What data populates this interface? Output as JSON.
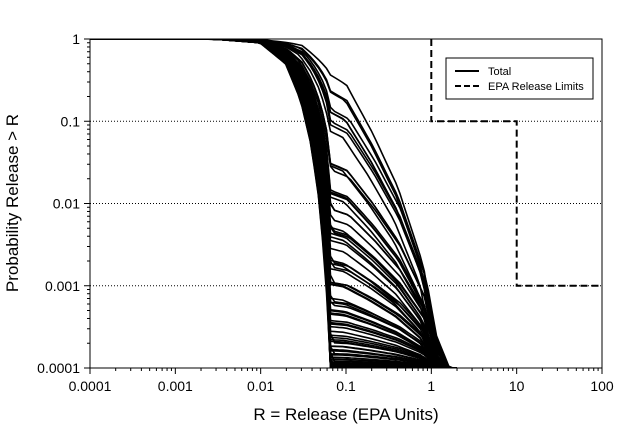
{
  "chart_data": {
    "type": "line",
    "xscale": "log",
    "yscale": "log",
    "xlim": [
      0.0001,
      100
    ],
    "ylim": [
      0.0001,
      1
    ],
    "xlabel": "R = Release (EPA Units)",
    "ylabel": "Probability Release > R",
    "x_ticks": [
      "0.0001",
      "0.001",
      "0.01",
      "0.1",
      "1",
      "10",
      "100"
    ],
    "y_ticks": [
      "1",
      "0.1",
      "0.01",
      "0.001",
      "0.0001"
    ],
    "grid": "dotted horizontal at y = 0.1, 0.01, 0.001",
    "legend_position": "top-right",
    "series": [
      {
        "name": "Total",
        "style": "solid",
        "note_count": "ensemble of many realizations (CCDFs)",
        "median_curve": [
          [
            0.0001,
            1
          ],
          [
            0.003,
            0.995
          ],
          [
            0.01,
            0.9
          ],
          [
            0.02,
            0.5
          ],
          [
            0.03,
            0.18
          ],
          [
            0.04,
            0.05
          ],
          [
            0.05,
            0.01
          ],
          [
            0.06,
            0.001
          ],
          [
            0.065,
            0.0001
          ]
        ],
        "upper_curve": [
          [
            0.0001,
            1
          ],
          [
            0.01,
            0.99
          ],
          [
            0.03,
            0.9
          ],
          [
            0.1,
            0.4
          ],
          [
            0.2,
            0.1
          ],
          [
            0.4,
            0.02
          ],
          [
            0.8,
            0.002
          ],
          [
            1.05,
            0.0003
          ],
          [
            1.5,
            0.0001
          ]
        ],
        "ensemble_size": 80,
        "x_at_prob_0_1_range": [
          0.028,
          0.2
        ]
      },
      {
        "name": "EPA Release Limits",
        "style": "dashed",
        "points": [
          [
            1,
            1
          ],
          [
            1,
            0.1
          ],
          [
            10,
            0.1
          ],
          [
            10,
            0.001
          ],
          [
            100,
            0.001
          ]
        ]
      }
    ],
    "legend": [
      "Total",
      "EPA Release Limits"
    ]
  }
}
